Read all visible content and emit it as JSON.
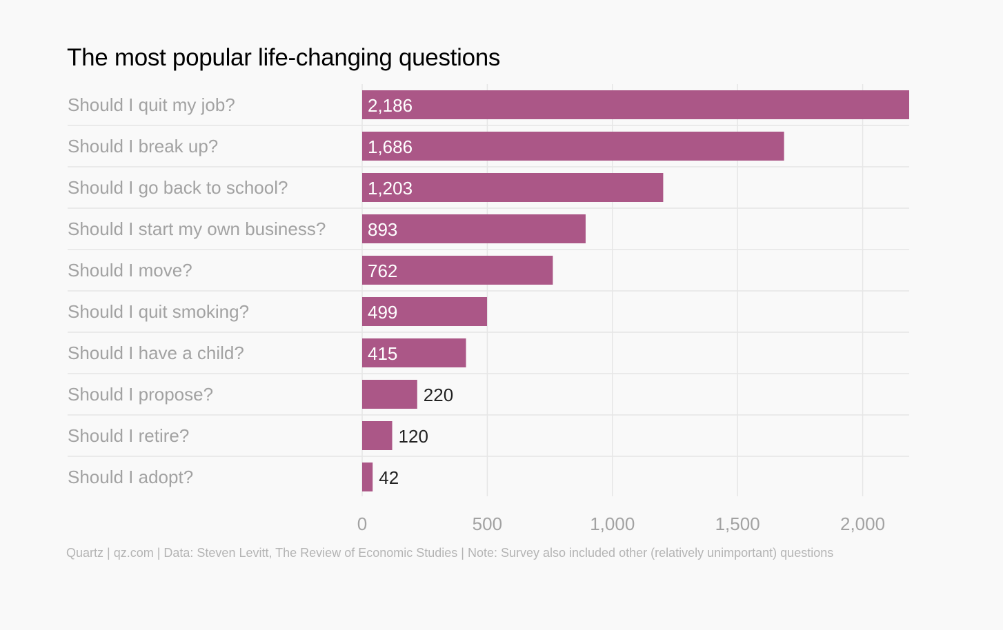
{
  "chart_data": {
    "type": "bar",
    "orientation": "horizontal",
    "title": "The most popular life-changing questions",
    "categories": [
      "Should I quit my job?",
      "Should I break up?",
      "Should I go back to school?",
      "Should I start my own business?",
      "Should I move?",
      "Should I quit smoking?",
      "Should I have a child?",
      "Should I propose?",
      "Should I retire?",
      "Should I adopt?"
    ],
    "values": [
      2186,
      1686,
      1203,
      893,
      762,
      499,
      415,
      220,
      120,
      42
    ],
    "value_labels": [
      "2,186",
      "1,686",
      "1,203",
      "893",
      "762",
      "499",
      "415",
      "220",
      "120",
      "42"
    ],
    "xlim": [
      0,
      2186
    ],
    "x_ticks": [
      0,
      500,
      1000,
      1500,
      2000
    ],
    "x_tick_labels": [
      "0",
      "500",
      "1,000",
      "1,500",
      "2,000"
    ],
    "xlabel": "",
    "ylabel": "",
    "grid": "vertical",
    "legend": "none",
    "colors": {
      "bar": "#ab5787",
      "label_inside": "#ffffff",
      "label_outside": "#222222",
      "category_text": "#a2a2a2",
      "grid": "#e6e6e6"
    }
  },
  "footer": {
    "note": "Quartz | qz.com | Data: Steven Levitt, The Review of Economic Studies | Note: Survey also included other (relatively unimportant) questions"
  }
}
